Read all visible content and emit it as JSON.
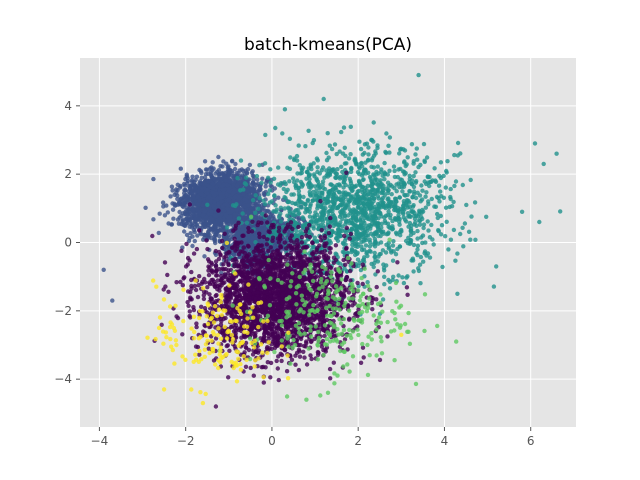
{
  "chart_data": {
    "type": "scatter",
    "title": "batch-kmeans(PCA)",
    "xlabel": "",
    "ylabel": "",
    "xlim": [
      -4.45,
      7.05
    ],
    "ylim": [
      -5.4,
      5.4
    ],
    "x_ticks": [
      -4,
      -2,
      0,
      2,
      4,
      6
    ],
    "y_ticks": [
      -4,
      -2,
      0,
      2,
      4
    ],
    "x_tick_labels": [
      "−4",
      "−2",
      "0",
      "2",
      "4",
      "6"
    ],
    "y_tick_labels": [
      "−4",
      "−2",
      "0",
      "2",
      "4"
    ],
    "grid": true,
    "background": "#e5e5e5",
    "grid_color": "#ffffff",
    "point_opacity": 0.8,
    "colormap": "viridis",
    "clusters": [
      {
        "color": "#3b528b",
        "count": 2200,
        "spread": [
          0.45,
          0.4
        ],
        "center": [
          -1.2,
          1.2
        ],
        "orientation_deg": 35
      },
      {
        "color": "#3b528b",
        "count": 900,
        "spread": [
          0.45,
          0.35
        ],
        "center": [
          -0.3,
          0.1
        ],
        "orientation_deg": 35
      },
      {
        "color": "#21918c",
        "count": 1500,
        "spread": [
          1.1,
          0.9
        ],
        "center": [
          1.9,
          0.9
        ],
        "orientation_deg": 10
      },
      {
        "color": "#440154",
        "count": 2600,
        "spread": [
          0.85,
          0.85
        ],
        "center": [
          0.1,
          -1.6
        ],
        "orientation_deg": 0
      },
      {
        "color": "#5ec962",
        "count": 260,
        "spread": [
          0.9,
          0.8
        ],
        "center": [
          1.3,
          -2.1
        ],
        "orientation_deg": 0
      },
      {
        "color": "#fde725",
        "count": 160,
        "spread": [
          0.7,
          0.75
        ],
        "center": [
          -1.3,
          -2.7
        ],
        "orientation_deg": 0
      }
    ],
    "outliers": [
      {
        "x": 3.4,
        "y": 4.9,
        "color": "#21918c"
      },
      {
        "x": 6.3,
        "y": 2.3,
        "color": "#21918c"
      },
      {
        "x": 6.6,
        "y": 2.6,
        "color": "#21918c"
      },
      {
        "x": 6.1,
        "y": 2.9,
        "color": "#21918c"
      },
      {
        "x": 6.2,
        "y": 0.6,
        "color": "#21918c"
      },
      {
        "x": 5.8,
        "y": 0.9,
        "color": "#21918c"
      },
      {
        "x": 5.2,
        "y": -0.7,
        "color": "#21918c"
      },
      {
        "x": 4.3,
        "y": -1.5,
        "color": "#21918c"
      },
      {
        "x": 0.8,
        "y": -4.6,
        "color": "#5ec962"
      },
      {
        "x": 1.3,
        "y": -4.4,
        "color": "#5ec962"
      },
      {
        "x": -1.6,
        "y": -4.7,
        "color": "#fde725"
      },
      {
        "x": -2.5,
        "y": -4.3,
        "color": "#fde725"
      },
      {
        "x": -1.3,
        "y": -4.8,
        "color": "#440154"
      },
      {
        "x": -3.7,
        "y": -1.7,
        "color": "#3b528b"
      },
      {
        "x": -3.9,
        "y": -0.8,
        "color": "#3b528b"
      },
      {
        "x": 0.3,
        "y": 3.9,
        "color": "#21918c"
      },
      {
        "x": 1.2,
        "y": 4.2,
        "color": "#21918c"
      },
      {
        "x": 3.0,
        "y": -2.7,
        "color": "#fde725"
      }
    ]
  }
}
